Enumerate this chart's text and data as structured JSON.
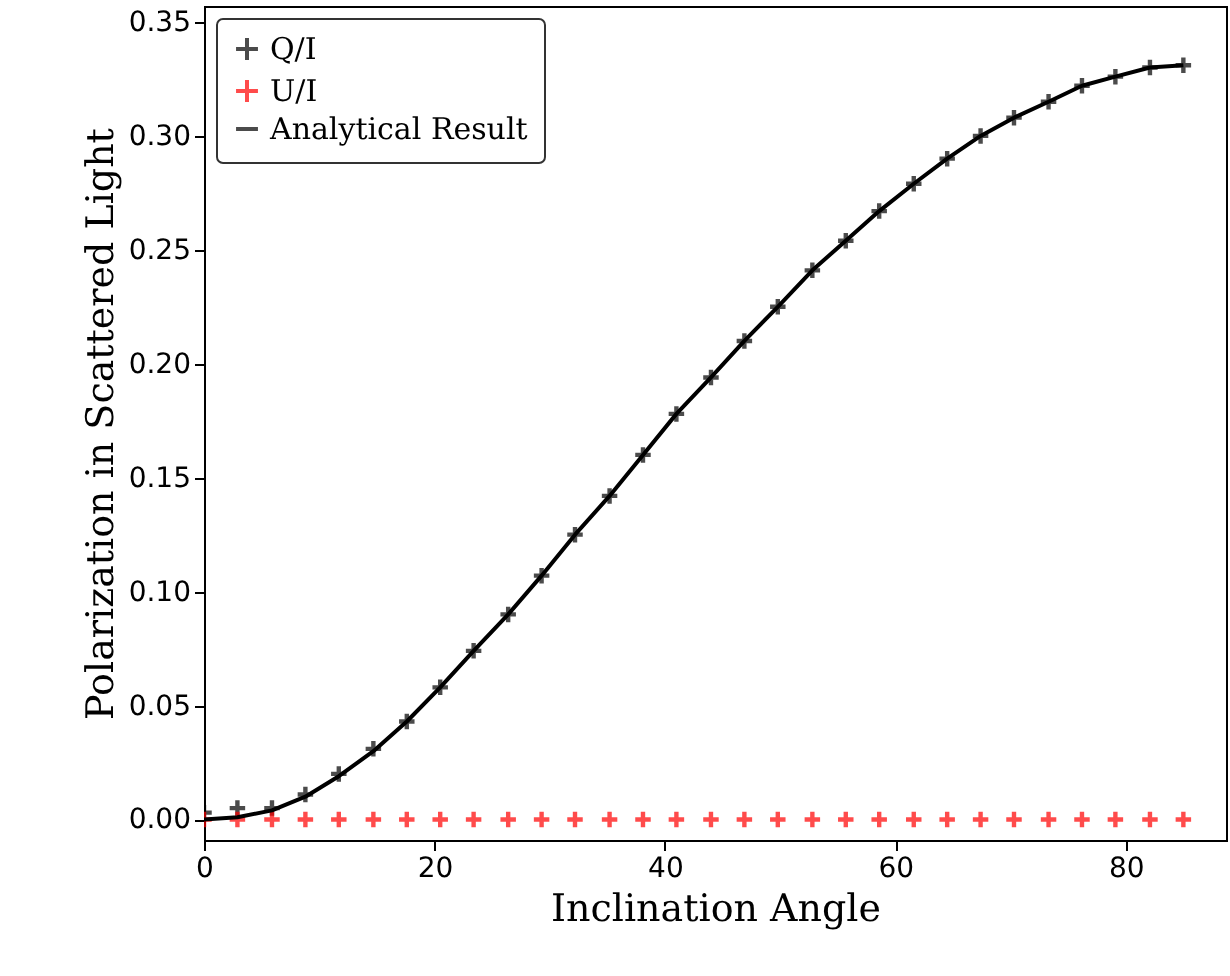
{
  "chart_data": {
    "type": "scatter",
    "xlabel": "Inclination Angle",
    "ylabel": "Polarization in Scattered Light",
    "x": [
      0,
      2.9,
      5.9,
      8.8,
      11.7,
      14.7,
      17.6,
      20.5,
      23.4,
      26.4,
      29.3,
      32.2,
      35.2,
      38.1,
      41.0,
      44.0,
      46.9,
      49.8,
      52.8,
      55.7,
      58.6,
      61.6,
      64.5,
      67.4,
      70.3,
      73.3,
      76.2,
      79.1,
      82.1,
      85.0
    ],
    "series": [
      {
        "name": "Q/I",
        "color": "#000000",
        "marker": "cross",
        "values": [
          0.003,
          0.005,
          0.005,
          0.011,
          0.02,
          0.031,
          0.043,
          0.058,
          0.074,
          0.09,
          0.107,
          0.125,
          0.142,
          0.16,
          0.178,
          0.194,
          0.21,
          0.225,
          0.241,
          0.254,
          0.267,
          0.279,
          0.29,
          0.3,
          0.308,
          0.315,
          0.322,
          0.326,
          0.33,
          0.331
        ]
      },
      {
        "name": "U/I",
        "color": "#ff0000",
        "marker": "cross",
        "values": [
          0,
          0,
          0,
          0,
          0,
          0,
          0,
          0,
          0,
          0,
          0,
          0,
          0,
          0,
          0,
          0,
          0,
          0,
          0,
          0,
          0,
          0,
          0,
          0,
          0,
          0,
          0,
          0,
          0,
          0
        ]
      },
      {
        "name": "Analytical Result",
        "type": "line",
        "color": "#000000",
        "line_style": "solid",
        "values": [
          0,
          0.001,
          0.004,
          0.01,
          0.019,
          0.03,
          0.043,
          0.058,
          0.074,
          0.09,
          0.107,
          0.125,
          0.142,
          0.16,
          0.178,
          0.194,
          0.21,
          0.225,
          0.241,
          0.254,
          0.267,
          0.279,
          0.29,
          0.3,
          0.308,
          0.315,
          0.322,
          0.326,
          0.33,
          0.331
        ]
      }
    ],
    "xlim": [
      0,
      88.7
    ],
    "xticks": [
      0,
      20,
      40,
      60,
      80
    ],
    "ylim": [
      -0.009,
      0.357
    ],
    "yticks": [
      {
        "value": 0,
        "label": "0.00"
      },
      0.05,
      {
        "value": 0.1,
        "label": "0.10"
      },
      0.15,
      {
        "value": 0.2,
        "label": "0.20"
      },
      0.25,
      {
        "value": 0.3,
        "label": "0.30"
      },
      0.35
    ],
    "legend": "top left",
    "grid": false
  }
}
